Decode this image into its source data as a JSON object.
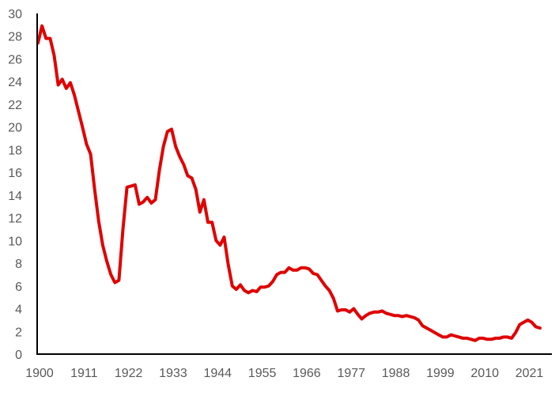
{
  "chart_data": {
    "type": "line",
    "title": "",
    "xlabel": "",
    "ylabel": "",
    "xlim": [
      1900,
      2024
    ],
    "ylim": [
      0,
      30
    ],
    "y_ticks": [
      "0",
      "2",
      "4",
      "6",
      "8",
      "10",
      "12",
      "14",
      "16",
      "18",
      "20",
      "22",
      "24",
      "26",
      "28",
      "30"
    ],
    "x_ticks": [
      "1900",
      "1911",
      "1922",
      "1933",
      "1944",
      "1955",
      "1966",
      "1977",
      "1988",
      "1999",
      "2010",
      "2021"
    ],
    "grid": false,
    "legend": "none",
    "line_color": "#e00000",
    "series": [
      {
        "x_start": 1900,
        "values": [
          27.4,
          28.9,
          27.8,
          27.8,
          26.3,
          23.7,
          24.2,
          23.4,
          23.9,
          22.8,
          21.4,
          20.0,
          18.5,
          17.6,
          14.5,
          11.7,
          9.6,
          8.2,
          7.0,
          6.3,
          6.5,
          11.0,
          14.7,
          14.8,
          14.9,
          13.2,
          13.4,
          13.8,
          13.3,
          13.6,
          16.2,
          18.3,
          19.6,
          19.8,
          18.3,
          17.4,
          16.7,
          15.7,
          15.5,
          14.5,
          12.5,
          13.6,
          11.6,
          11.6,
          10.0,
          9.6,
          10.3,
          7.9,
          6.0,
          5.7,
          6.1,
          5.6,
          5.4,
          5.6,
          5.5,
          5.9,
          5.9,
          6.0,
          6.4,
          7.0,
          7.2,
          7.2,
          7.6,
          7.4,
          7.4,
          7.6,
          7.6,
          7.5,
          7.1,
          7.0,
          6.5,
          6.0,
          5.6,
          4.9,
          3.8,
          3.9,
          3.9,
          3.7,
          4.0,
          3.5,
          3.1,
          3.4,
          3.6,
          3.7,
          3.7,
          3.8,
          3.6,
          3.5,
          3.4,
          3.4,
          3.3,
          3.4,
          3.3,
          3.2,
          3.0,
          2.5,
          2.3,
          2.1,
          1.9,
          1.7,
          1.5,
          1.5,
          1.7,
          1.6,
          1.5,
          1.4,
          1.4,
          1.3,
          1.2,
          1.4,
          1.4,
          1.3,
          1.3,
          1.4,
          1.4,
          1.5,
          1.5,
          1.4,
          1.9,
          2.6,
          2.8,
          3.0,
          2.8,
          2.4,
          2.3
        ]
      }
    ]
  }
}
